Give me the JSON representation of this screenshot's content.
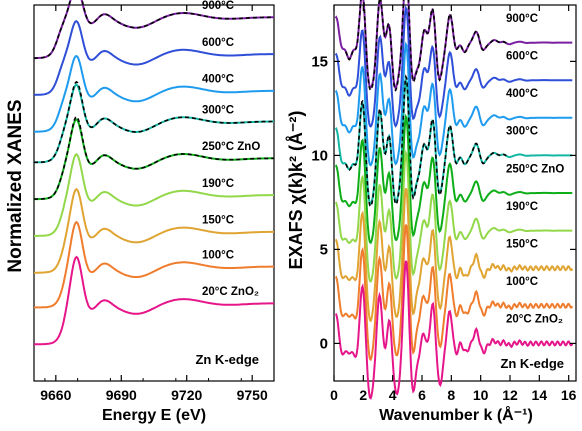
{
  "chart_data": [
    {
      "type": "line",
      "ylabel": "Normalized XANES",
      "xlabel": "Energy E (eV)",
      "xlim": [
        9650,
        9760
      ],
      "xticks": [
        9660,
        9690,
        9720,
        9750
      ],
      "y_tick_labels": "none",
      "annotation": "Zn K-edge",
      "series": [
        {
          "name": "900°C",
          "color": "#7b1fa2"
        },
        {
          "name": "600°C",
          "color": "#2f4fd8"
        },
        {
          "name": "400°C",
          "color": "#1e9bef"
        },
        {
          "name": "300°C",
          "color": "#14b7a6"
        },
        {
          "name": "250°C ZnO",
          "color": "#0dae18"
        },
        {
          "name": "190°C",
          "color": "#92d84a"
        },
        {
          "name": "150°C",
          "color": "#e0a432"
        },
        {
          "name": "100°C",
          "color": "#ef7d2d"
        },
        {
          "name": "20°C ZnO₂",
          "color": "#e6168a"
        }
      ],
      "reference_overlay": {
        "style": "dashed",
        "color": "#000000",
        "on_series": [
          "900°C",
          "300°C",
          "250°C ZnO"
        ]
      },
      "offsets": [
        7.9,
        7.0,
        6.1,
        5.35,
        4.45,
        3.55,
        2.65,
        1.8,
        0.9
      ]
    },
    {
      "type": "line",
      "ylabel": "EXAFS χ(k)k² (Å⁻²)",
      "xlabel": "Wavenumber k (Å⁻¹)",
      "xlim": [
        0,
        16.5
      ],
      "ylim": [
        -2,
        18
      ],
      "xticks": [
        0,
        2,
        4,
        6,
        8,
        10,
        12,
        14,
        16
      ],
      "yticks": [
        0,
        5,
        10,
        15
      ],
      "annotation": "Zn K-edge",
      "series": [
        {
          "name": "900°C",
          "color": "#7b1fa2"
        },
        {
          "name": "600°C",
          "color": "#2f4fd8"
        },
        {
          "name": "400°C",
          "color": "#1e9bef"
        },
        {
          "name": "300°C",
          "color": "#14b7a6"
        },
        {
          "name": "250°C ZnO",
          "color": "#0dae18"
        },
        {
          "name": "190°C",
          "color": "#92d84a"
        },
        {
          "name": "150°C",
          "color": "#e0a432"
        },
        {
          "name": "100°C",
          "color": "#ef7d2d"
        },
        {
          "name": "20°C ZnO₂",
          "color": "#e6168a"
        }
      ],
      "reference_overlay": {
        "style": "dashed",
        "color": "#000000",
        "on_series": [
          "900°C",
          "300°C"
        ]
      },
      "offsets": [
        16.0,
        14.0,
        12.0,
        10.0,
        8.0,
        6.0,
        4.0,
        2.0,
        0.0
      ]
    }
  ]
}
